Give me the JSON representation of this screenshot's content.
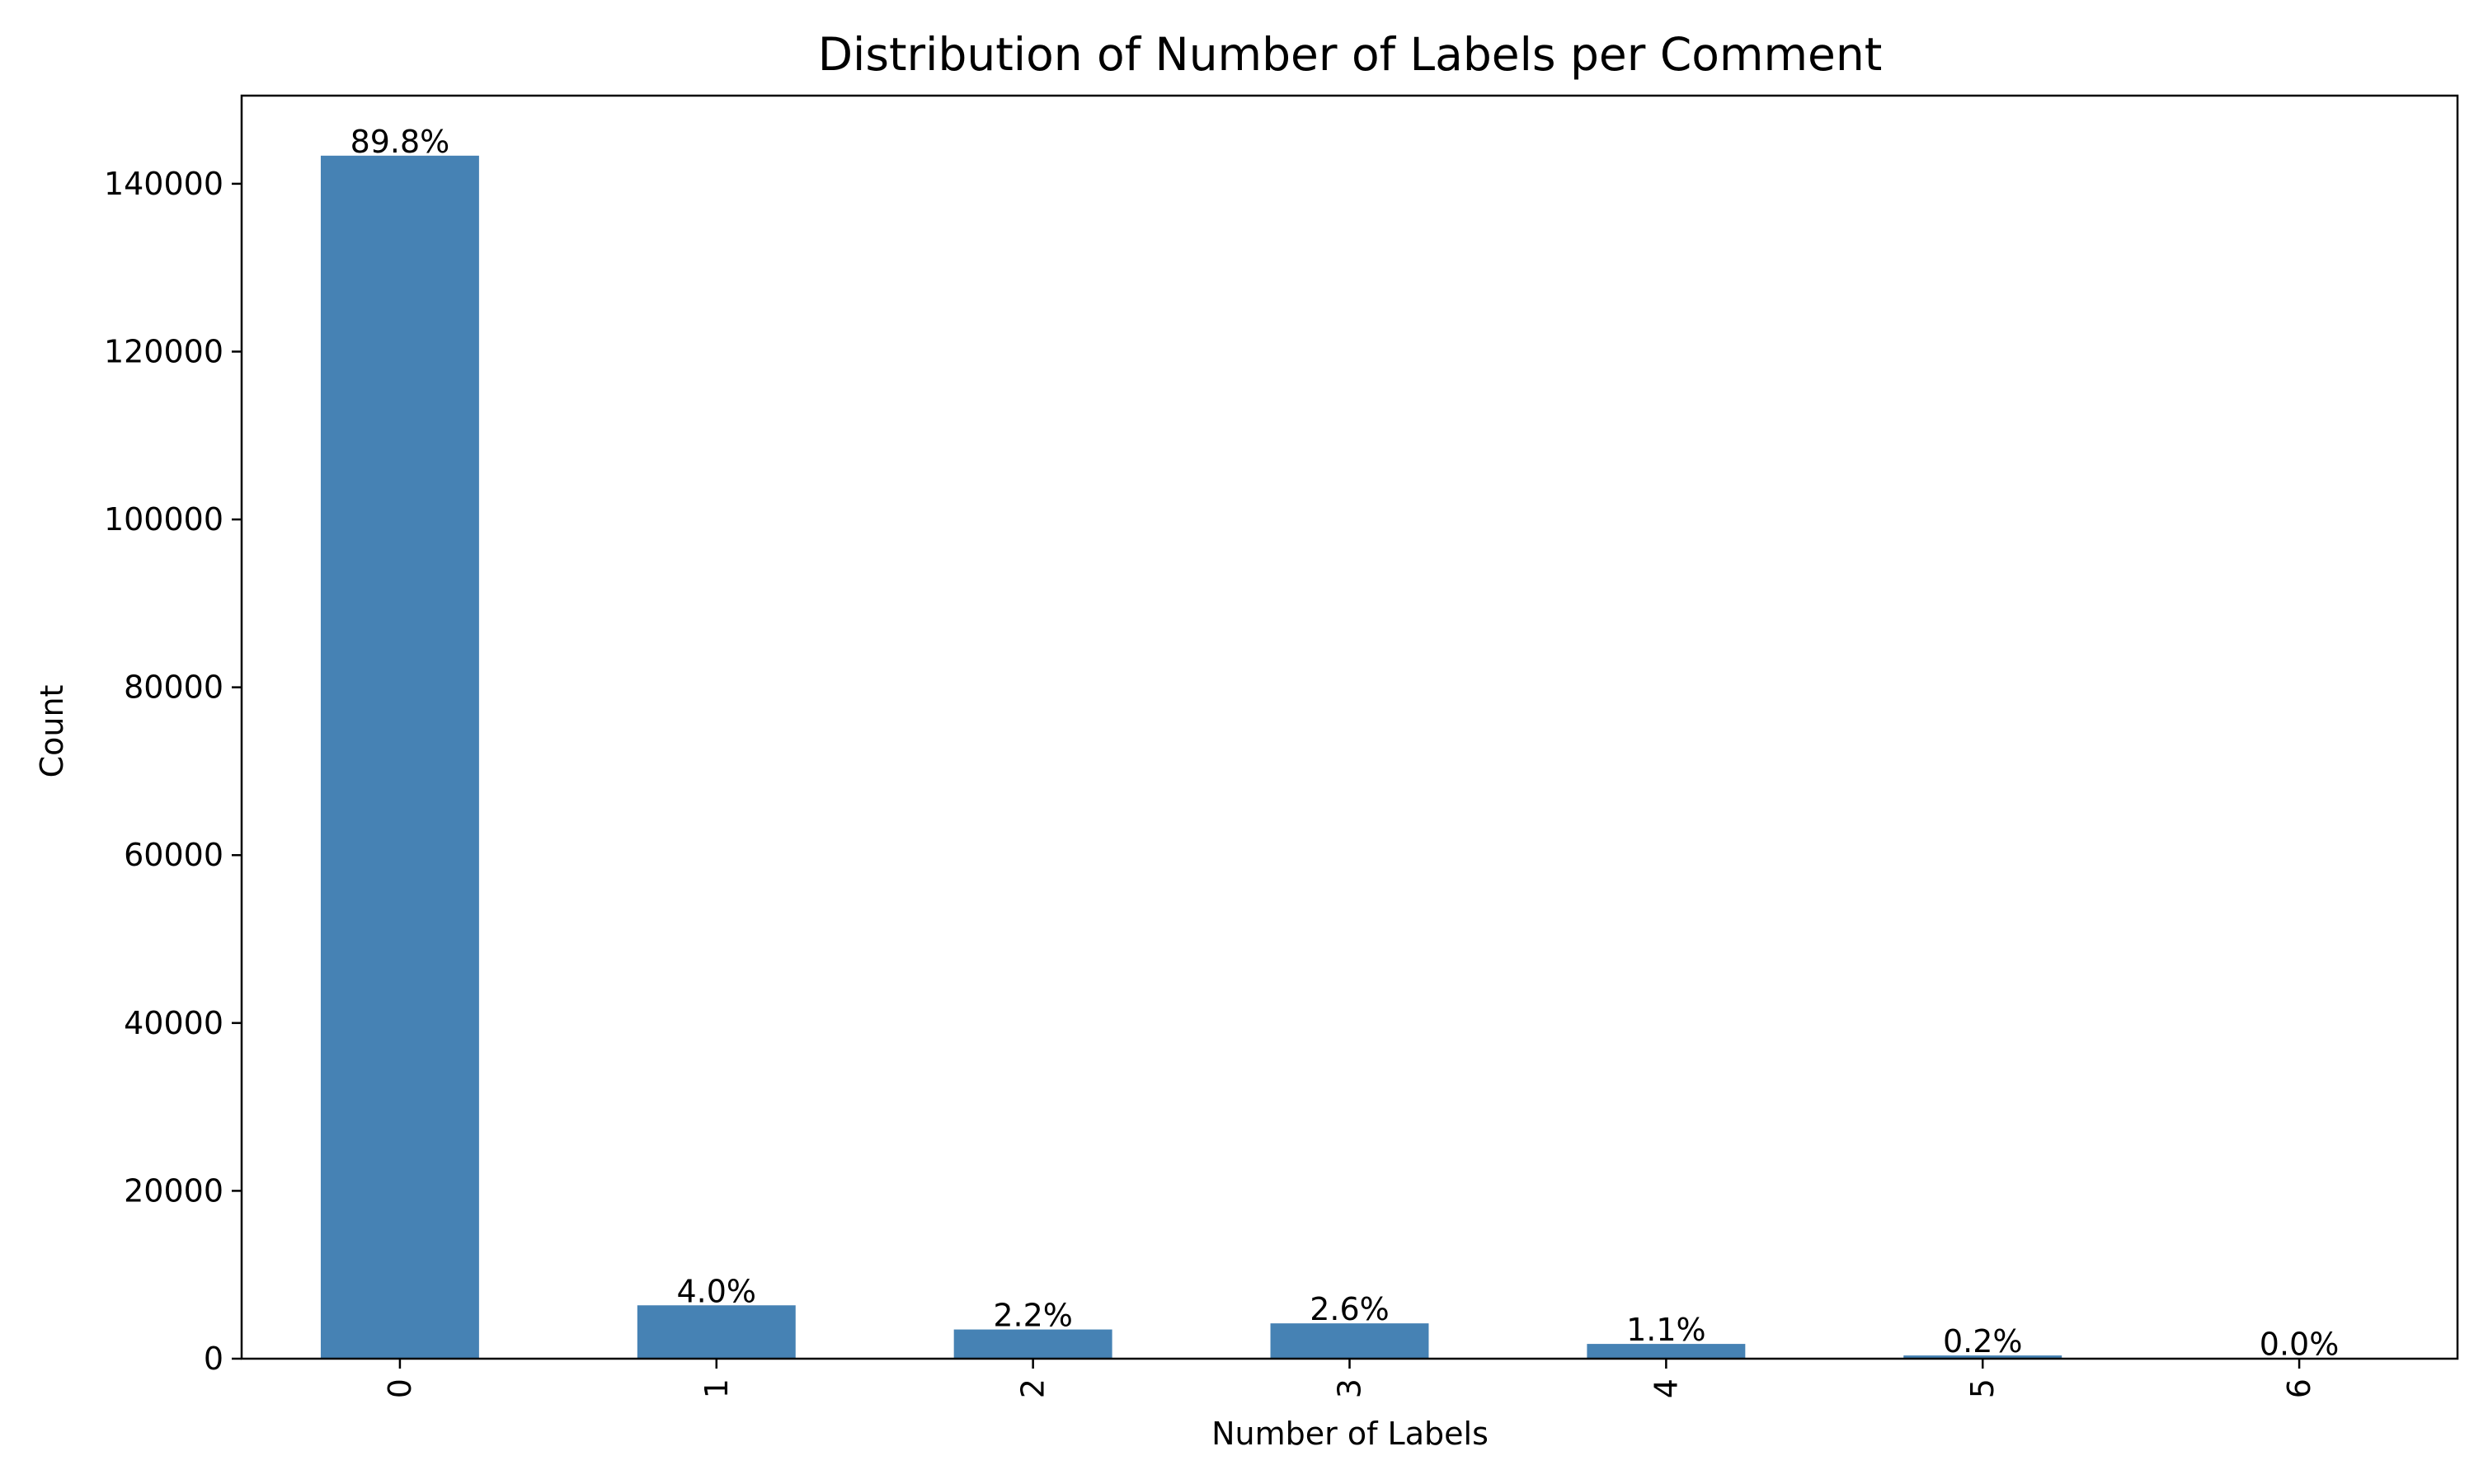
{
  "chart_data": {
    "type": "bar",
    "title": "Distribution of Number of Labels per Comment",
    "xlabel": "Number of Labels",
    "ylabel": "Count",
    "categories": [
      "0",
      "1",
      "2",
      "3",
      "4",
      "5",
      "6"
    ],
    "values": [
      143346,
      6360,
      3480,
      4209,
      1760,
      385,
      31
    ],
    "data_labels": [
      "89.8%",
      "4.0%",
      "2.2%",
      "2.6%",
      "1.1%",
      "0.2%",
      "0.0%"
    ],
    "ylim": [
      0,
      150500
    ],
    "yticks": [
      0,
      20000,
      40000,
      60000,
      80000,
      100000,
      120000,
      140000
    ],
    "ytick_labels": [
      "0",
      "20000",
      "40000",
      "60000",
      "80000",
      "100000",
      "120000",
      "140000"
    ],
    "bar_color": "#4682b4",
    "grid": false,
    "legend": false,
    "xtick_rotation": "vertical"
  }
}
